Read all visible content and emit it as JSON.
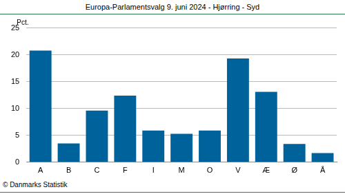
{
  "chart_data": {
    "type": "bar",
    "title": "Europa-Parlamentsvalg 9. juni 2024 - Hjørring - Syd",
    "ylabel": "Pct.",
    "caption": "© Danmarks Statistik",
    "categories": [
      "A",
      "B",
      "C",
      "F",
      "I",
      "M",
      "O",
      "V",
      "Æ",
      "Ø",
      "Å"
    ],
    "values": [
      20.8,
      3.5,
      9.6,
      12.4,
      5.9,
      5.3,
      5.9,
      19.3,
      13.1,
      3.4,
      1.7
    ],
    "color": "#00629b",
    "ylim": [
      0,
      25
    ],
    "yticks": [
      0,
      5,
      10,
      15,
      20,
      25
    ],
    "grid": true
  }
}
